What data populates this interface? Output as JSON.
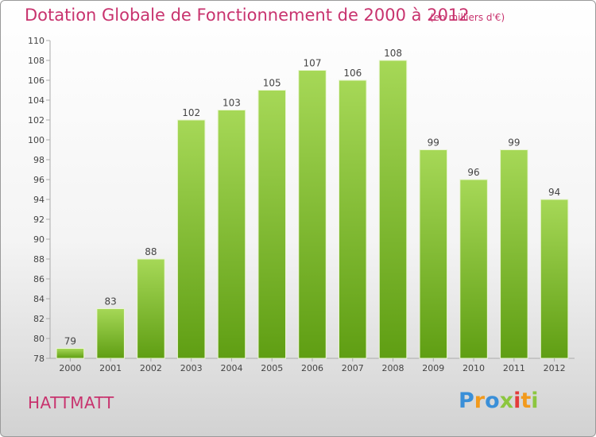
{
  "header": {
    "title": "Dotation Globale de Fonctionnement de 2000 à 2012",
    "subtitle": "(en milliers d'€)"
  },
  "place_label": "HATTMATT",
  "logo": {
    "letters": [
      "P",
      "r",
      "o",
      "x",
      "i",
      "t",
      "i"
    ],
    "colors": [
      "#3a8fd8",
      "#f29a1c",
      "#3a8fd8",
      "#8cc63f",
      "#e33b3b",
      "#f29a1c",
      "#8cc63f"
    ]
  },
  "colors": {
    "bar_top": "#a6d857",
    "bar_bottom": "#5f9e13",
    "axis": "#aaaaaa",
    "grid": "#dddddd",
    "text": "#444444"
  },
  "chart_data": {
    "type": "bar",
    "categories": [
      "2000",
      "2001",
      "2002",
      "2003",
      "2004",
      "2005",
      "2006",
      "2007",
      "2008",
      "2009",
      "2010",
      "2011",
      "2012"
    ],
    "values": [
      79,
      83,
      88,
      102,
      103,
      105,
      107,
      106,
      108,
      99,
      96,
      99,
      94
    ],
    "title": "Dotation Globale de Fonctionnement de 2000 à 2012",
    "subtitle": "(en milliers d'€)",
    "ylim": [
      78,
      110
    ],
    "yticks": [
      78,
      80,
      82,
      84,
      86,
      88,
      90,
      92,
      94,
      96,
      98,
      100,
      102,
      104,
      106,
      108,
      110
    ],
    "grid": false,
    "legend": "none"
  }
}
